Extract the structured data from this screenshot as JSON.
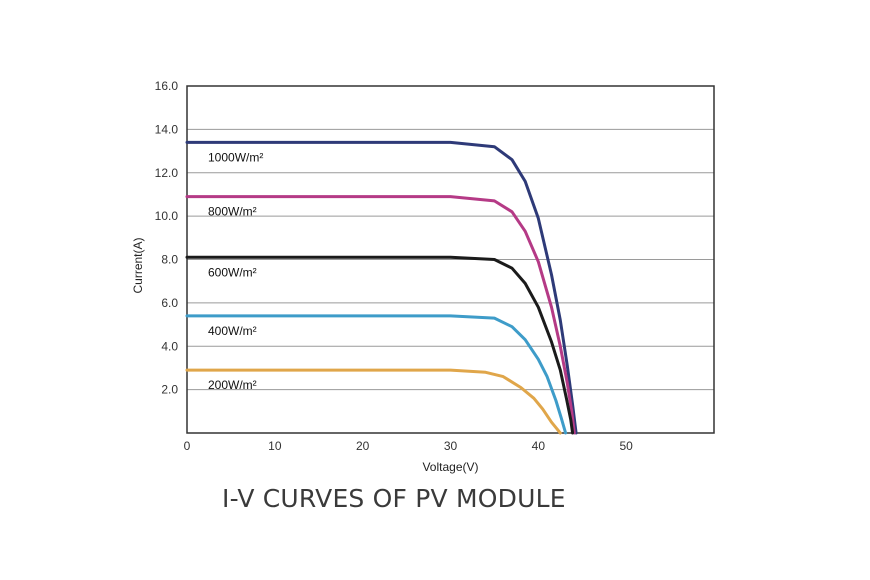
{
  "caption": "I-V CURVES OF PV MODULE",
  "chart_data": {
    "type": "line",
    "title": "",
    "xlabel": "Voltage(V)",
    "ylabel": "Current(A)",
    "xlim": [
      0,
      60
    ],
    "ylim": [
      0,
      16
    ],
    "xticks": [
      0,
      10,
      20,
      30,
      40,
      50
    ],
    "yticks": [
      "2.0",
      "4.0",
      "6.0",
      "8.0",
      "10.0",
      "12.0",
      "14.0",
      "16.0"
    ],
    "grid": "horizontal",
    "series": [
      {
        "name": "1000W/m²",
        "color": "#2e3a78",
        "isc": 13.4,
        "x": [
          0,
          30,
          35,
          37,
          38.5,
          40,
          41.5,
          42.5,
          43.3,
          43.9,
          44.3
        ],
        "y": [
          13.4,
          13.4,
          13.2,
          12.6,
          11.6,
          9.9,
          7.3,
          5.2,
          3.1,
          1.3,
          0
        ]
      },
      {
        "name": "800W/m²",
        "color": "#b53a86",
        "isc": 10.9,
        "x": [
          0,
          30,
          35,
          37,
          38.5,
          40,
          41.5,
          42.5,
          43.3,
          43.8,
          44.1
        ],
        "y": [
          10.9,
          10.9,
          10.7,
          10.2,
          9.3,
          7.9,
          5.8,
          4.0,
          2.3,
          1.0,
          0
        ]
      },
      {
        "name": "600W/m²",
        "color": "#1b1b1b",
        "isc": 8.1,
        "x": [
          0,
          30,
          35,
          37,
          38.5,
          40,
          41.5,
          42.5,
          43.2,
          43.7,
          43.9
        ],
        "y": [
          8.1,
          8.1,
          8.0,
          7.6,
          6.9,
          5.8,
          4.2,
          2.9,
          1.6,
          0.6,
          0
        ]
      },
      {
        "name": "400W/m²",
        "color": "#3e9cc9",
        "isc": 5.4,
        "x": [
          0,
          30,
          35,
          37,
          38.5,
          40,
          41,
          42,
          42.6,
          43.1
        ],
        "y": [
          5.4,
          5.4,
          5.3,
          4.9,
          4.3,
          3.4,
          2.6,
          1.5,
          0.7,
          0
        ]
      },
      {
        "name": "200W/m²",
        "color": "#e0a64a",
        "isc": 2.9,
        "x": [
          0,
          30,
          34,
          36,
          38,
          39.5,
          40.5,
          41.5,
          42.1,
          42.5
        ],
        "y": [
          2.9,
          2.9,
          2.8,
          2.6,
          2.1,
          1.6,
          1.1,
          0.5,
          0.2,
          0
        ]
      }
    ]
  }
}
